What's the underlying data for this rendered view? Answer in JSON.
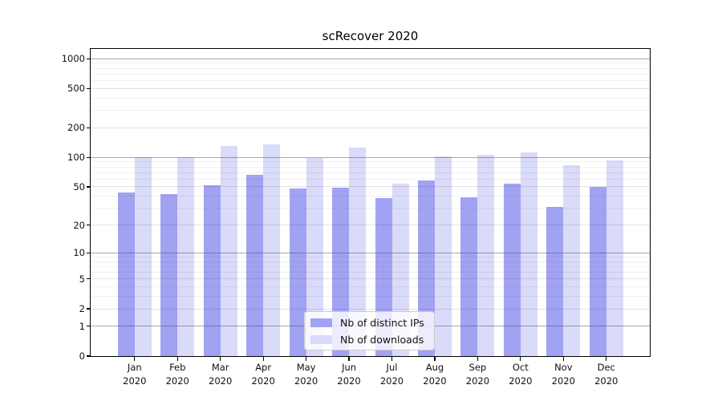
{
  "chart_data": {
    "type": "bar",
    "title": "scRecover 2020",
    "categories": [
      "Jan",
      "Feb",
      "Mar",
      "Apr",
      "May",
      "Jun",
      "Jul",
      "Aug",
      "Sep",
      "Oct",
      "Nov",
      "Dec"
    ],
    "category_year": "2020",
    "series": [
      {
        "name": "Nb of distinct IPs",
        "color": "#a2a2f2",
        "values": [
          44,
          42,
          52,
          66,
          48,
          49,
          38,
          58,
          39,
          54,
          31,
          50
        ]
      },
      {
        "name": "Nb of downloads",
        "color": "#dadaf9",
        "values": [
          100,
          100,
          130,
          135,
          98,
          126,
          54,
          102,
          106,
          112,
          83,
          93
        ]
      }
    ],
    "y_ticks": [
      0,
      1,
      2,
      5,
      10,
      20,
      50,
      100,
      200,
      500,
      1000
    ],
    "y_scale": "log10(value+1)",
    "ylim": [
      0,
      1250
    ],
    "xlabel": "",
    "ylabel": "",
    "grid": "horizontal, log minor + major, drawn over bars",
    "legend_position": "lower center",
    "colors": {
      "axis": "#000000",
      "major_grid": "#a9a9a9",
      "minor_grid": "#ededed",
      "text": "#111111"
    }
  }
}
